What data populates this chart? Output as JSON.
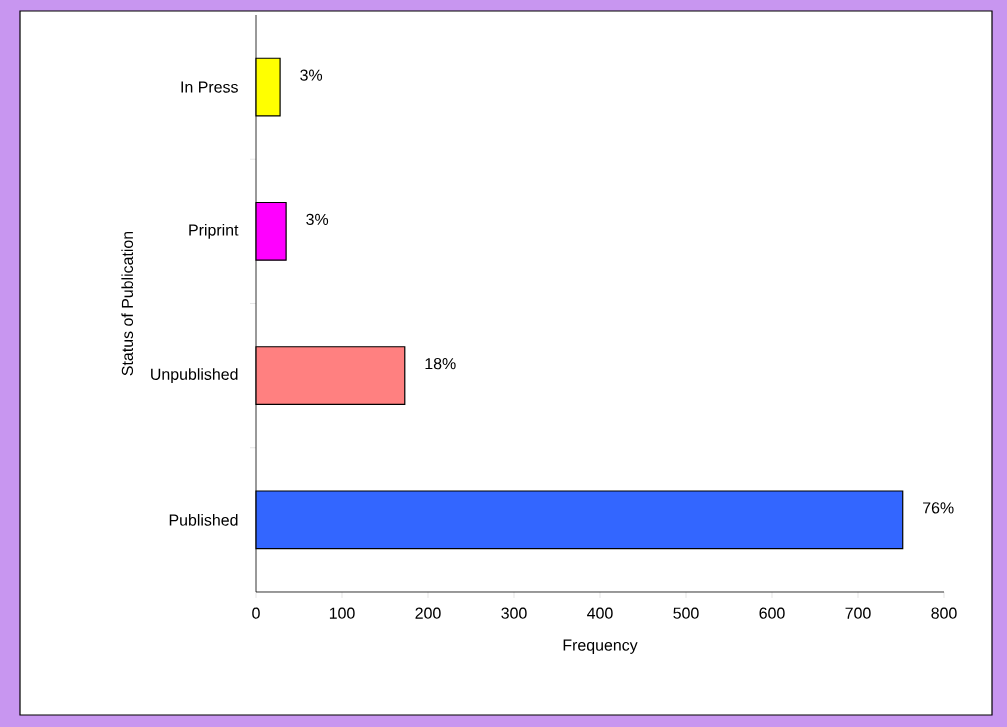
{
  "chart_data": {
    "type": "bar",
    "orientation": "horizontal",
    "xlabel": "Frequency",
    "ylabel": "Status of Publication",
    "categories": [
      "In Press",
      "Priprint",
      "Unpublished",
      "Published"
    ],
    "values": [
      28,
      35,
      173,
      752
    ],
    "colors": [
      "#ffff00",
      "#ff00ff",
      "#ff8080",
      "#3366ff"
    ],
    "annotations": [
      {
        "text": "3%",
        "x": 28,
        "y": "In Press"
      },
      {
        "text": "3%",
        "x": 35,
        "y": "Priprint"
      },
      {
        "text": "18%",
        "x": 173,
        "y": "Unpublished"
      },
      {
        "text": "76%",
        "x": 752,
        "y": "Published"
      }
    ],
    "xlim": [
      0,
      800
    ],
    "xticks": [
      0,
      100,
      200,
      300,
      400,
      500,
      600,
      700,
      800
    ],
    "grid": false
  }
}
